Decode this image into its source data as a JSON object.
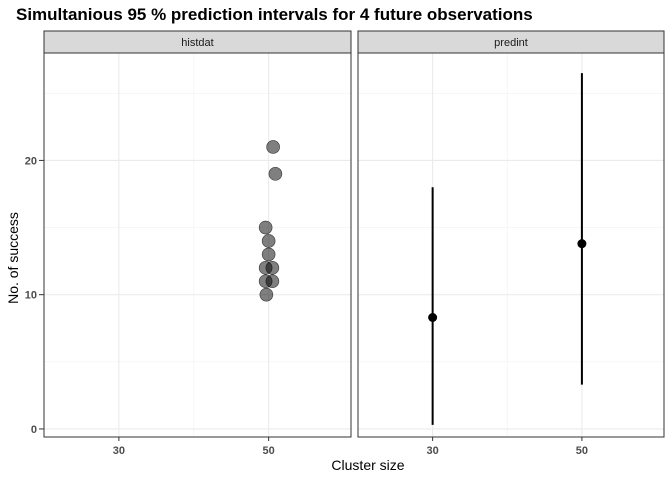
{
  "chart_data": {
    "type": "scatter",
    "title": "Simultanious 95 % prediction intervals for 4 future observations",
    "xlabel": "Cluster size",
    "ylabel": "No. of success",
    "xticks": [
      30,
      50
    ],
    "yticks": [
      0,
      10,
      20
    ],
    "xlim": [
      20,
      61
    ],
    "ylim": [
      -0.6,
      28
    ],
    "grid": true,
    "panels": [
      {
        "label": "histdat",
        "points": [
          {
            "x": 50.6,
            "y": 21
          },
          {
            "x": 50.9,
            "y": 19
          },
          {
            "x": 49.6,
            "y": 15
          },
          {
            "x": 50.0,
            "y": 14
          },
          {
            "x": 50.0,
            "y": 13
          },
          {
            "x": 49.6,
            "y": 12
          },
          {
            "x": 50.5,
            "y": 12
          },
          {
            "x": 49.6,
            "y": 11
          },
          {
            "x": 50.5,
            "y": 11
          },
          {
            "x": 49.7,
            "y": 10
          }
        ]
      },
      {
        "label": "predint",
        "intervals": [
          {
            "x": 30,
            "y": 8.3,
            "lower": 0.3,
            "upper": 18
          },
          {
            "x": 50,
            "y": 13.8,
            "lower": 3.3,
            "upper": 26.5
          }
        ]
      }
    ]
  }
}
